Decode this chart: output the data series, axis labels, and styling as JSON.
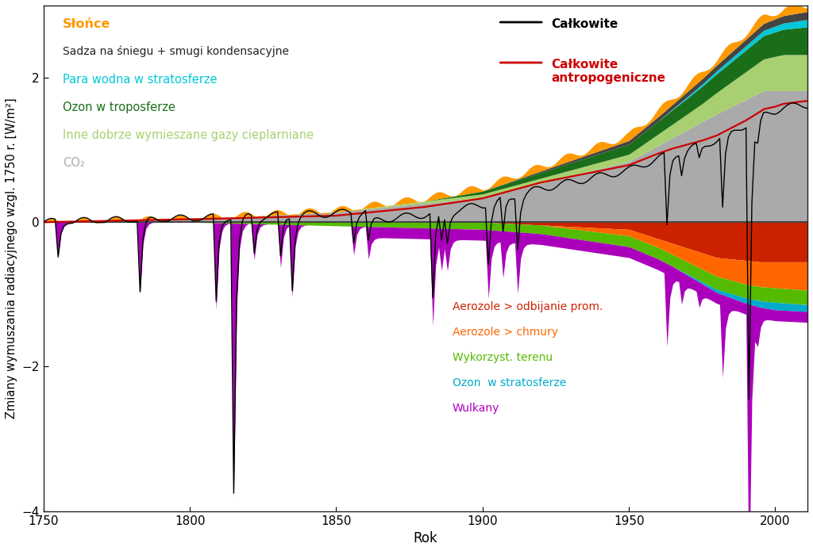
{
  "xlabel": "Rok",
  "ylabel": "Zmiany wymuszania radiacyjnego wzgl. 1750 r. [W/m²]",
  "xlim": [
    1750,
    2011
  ],
  "ylim": [
    -4,
    3
  ],
  "yticks": [
    -4,
    -2,
    0,
    2
  ],
  "xticks": [
    1750,
    1800,
    1850,
    1900,
    1950,
    2000
  ],
  "colors": {
    "co2": "#aaaaaa",
    "other_ghg": "#a8d070",
    "tropospheric_ozone": "#1a6e1a",
    "stratospheric_water": "#00c8d8",
    "soot_contrails": "#444444",
    "solar": "#ff9900",
    "aerosol_direct": "#cc2200",
    "aerosol_cloud": "#ff6600",
    "land_use": "#55bb00",
    "stratospheric_ozone": "#00aacc",
    "volcanoes": "#aa00bb",
    "total": "#000000",
    "total_anthropogenic": "#cc0000",
    "zero_line": "#444444"
  },
  "legend_labels": {
    "solar": "Słońce",
    "soot": "Sadza na śniegu + smugi kondensacyjne",
    "strat_water": "Para wodna w stratosferze",
    "trop_ozone": "Ozon w troposferze",
    "other_ghg": "Inne dobrze wymieszane gazy cieplarniane",
    "co2": "CO₂",
    "total": "Całkowite",
    "total_anthro": "Całkowite\nantropogeniczne",
    "aerosol_direct": "Aerozole > odbijanie prom.",
    "aerosol_cloud": "Aerozole > chmury",
    "land_use": "Wykorzyst. terenu",
    "strat_ozone": "Ozon  w stratosferze",
    "volcanoes": "Wulkany"
  }
}
